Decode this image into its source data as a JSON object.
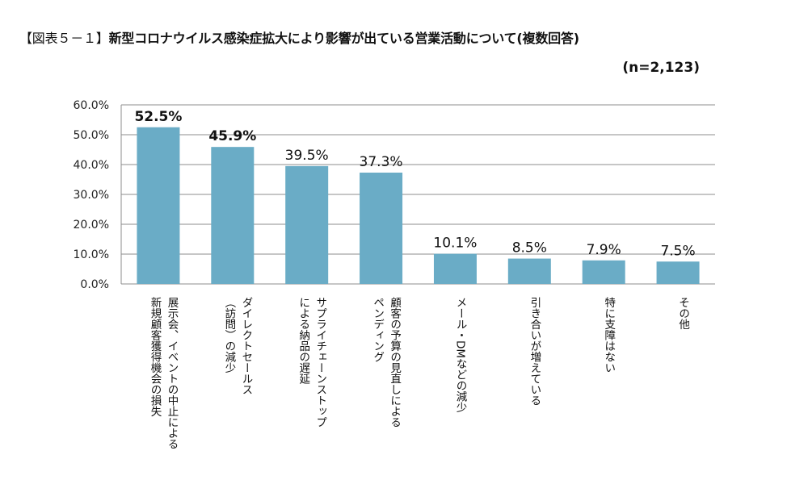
{
  "header": {
    "title_prefix": "【図表５－１】",
    "title_main": "新型コロナウイルス感染症拡大により影響が出ている営業活動について(複数回答)",
    "subtitle": "(n=2,123)"
  },
  "colors": {
    "bar": "#6aacc6",
    "grid": "#8c8c8c"
  },
  "chart_data": {
    "type": "bar",
    "title": "新型コロナウイルス感染症拡大により影響が出ている営業活動について(複数回答)",
    "ylim": [
      0,
      60
    ],
    "yticks": [
      "60.0%",
      "50.0%",
      "40.0%",
      "30.0%",
      "20.0%",
      "10.0%",
      "0.0%"
    ],
    "grid": true,
    "legend": "none",
    "categories": [
      [
        "展示会、イベントの中止による",
        "新規顧客獲得機会の損失"
      ],
      [
        "ダイレクトセールス",
        "（訪問）の減少"
      ],
      [
        "サプライチェーンストップ",
        "による納品の遅延"
      ],
      [
        "顧客の予算の見直しによる",
        "ペンディング"
      ],
      [
        "メール・DMなどの減少"
      ],
      [
        "引き合いが増えている"
      ],
      [
        "特に支障はない"
      ],
      [
        "その他"
      ]
    ],
    "values": [
      52.5,
      45.9,
      39.5,
      37.3,
      10.1,
      8.5,
      7.9,
      7.5
    ],
    "data_labels": [
      "52.5%",
      "45.9%",
      "39.5%",
      "37.3%",
      "10.1%",
      "8.5%",
      "7.9%",
      "7.5%"
    ],
    "bold_labels": [
      true,
      true,
      false,
      false,
      false,
      false,
      false,
      false
    ]
  }
}
